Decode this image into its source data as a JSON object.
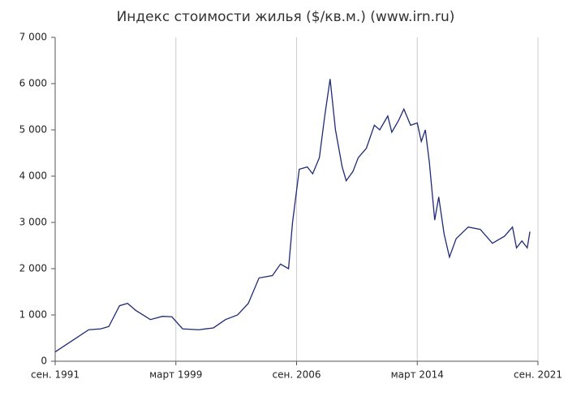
{
  "chart_data": {
    "type": "line",
    "title": "Индекс стоимости жилья ($/кв.м.) (www.irn.ru)",
    "x": [
      "1991-09",
      "1992-10",
      "1993-10",
      "1994-07",
      "1995-01",
      "1995-09",
      "1996-03",
      "1996-09",
      "1997-08",
      "1998-05",
      "1998-12",
      "1999-08",
      "2000-08",
      "2001-07",
      "2002-04",
      "2003-01",
      "2003-09",
      "2004-05",
      "2005-03",
      "2005-09",
      "2006-03",
      "2006-06",
      "2006-11",
      "2007-05",
      "2007-09",
      "2008-02",
      "2008-06",
      "2008-10",
      "2009-02",
      "2009-07",
      "2009-10",
      "2010-03",
      "2010-07",
      "2011-01",
      "2011-07",
      "2011-11",
      "2012-05",
      "2012-08",
      "2013-01",
      "2013-05",
      "2013-10",
      "2014-03",
      "2014-06",
      "2014-09",
      "2014-12",
      "2015-04",
      "2015-07",
      "2015-11",
      "2016-03",
      "2016-08",
      "2017-05",
      "2018-02",
      "2018-11",
      "2019-08",
      "2020-02",
      "2020-05",
      "2020-09",
      "2021-01",
      "2021-03"
    ],
    "series": [
      {
        "color": "#1f2a78",
        "values": [
          200,
          450,
          680,
          700,
          750,
          1200,
          1250,
          1100,
          900,
          970,
          960,
          700,
          680,
          720,
          900,
          1000,
          1250,
          1800,
          1850,
          2100,
          2000,
          3000,
          4150,
          4200,
          4050,
          4400,
          5300,
          6100,
          5000,
          4200,
          3900,
          4100,
          4400,
          4600,
          5100,
          5000,
          5300,
          4950,
          5200,
          5450,
          5100,
          5150,
          4750,
          5000,
          4300,
          3050,
          3550,
          2750,
          2250,
          2650,
          2900,
          2850,
          2550,
          2700,
          2900,
          2450,
          2600,
          2450,
          2800
        ]
      }
    ],
    "xlim": [
      "1991-09",
      "2021-09"
    ],
    "xticks": [
      {
        "value": "1991-09",
        "label": "сен. 1991"
      },
      {
        "value": "1999-03",
        "label": "март 1999"
      },
      {
        "value": "2006-09",
        "label": "сен. 2006"
      },
      {
        "value": "2014-03",
        "label": "март 2014"
      },
      {
        "value": "2021-09",
        "label": "сен. 2021"
      }
    ],
    "ylim": [
      0,
      7000
    ],
    "yticks": [
      0,
      {
        "value": 1000,
        "label": "1 000"
      },
      {
        "value": 2000,
        "label": "2 000"
      },
      {
        "value": 3000,
        "label": "3 000"
      },
      {
        "value": 4000,
        "label": "4 000"
      },
      {
        "value": 5000,
        "label": "5 000"
      },
      {
        "value": 6000,
        "label": "6 000"
      },
      {
        "value": 7000,
        "label": "7 000"
      }
    ],
    "grid": true
  }
}
